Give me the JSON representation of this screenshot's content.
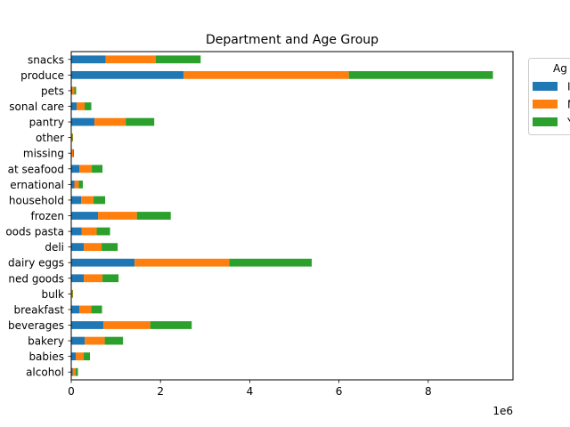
{
  "chart_data": {
    "type": "bar",
    "orientation": "horizontal",
    "stacked": true,
    "title": "Department and Age Group",
    "xlabel": "",
    "ylabel": "",
    "x_offset_label": "1e6",
    "xlim": [
      0,
      9.9
    ],
    "xticks": [
      0,
      2,
      4,
      6,
      8
    ],
    "grid": false,
    "legend_position": "right-outside (clipped)",
    "legend_title": "Ag",
    "categories": [
      "alcohol",
      "babies",
      "bakery",
      "beverages",
      "breakfast",
      "bulk",
      "canned goods",
      "dairy eggs",
      "deli",
      "dry goods pasta",
      "frozen",
      "household",
      "international",
      "meat seafood",
      "missing",
      "other",
      "pantry",
      "personal care",
      "pets",
      "produce",
      "snacks"
    ],
    "category_labels_visible": [
      "alcohol",
      "babies",
      "bakery",
      "beverages",
      "breakfast",
      "bulk",
      "ned goods",
      "dairy eggs",
      "deli",
      "oods pasta",
      "frozen",
      "household",
      "ernational",
      "at seafood",
      "missing",
      "other",
      "pantry",
      "sonal care",
      "pets",
      "produce",
      "snacks"
    ],
    "series": [
      {
        "name": "I",
        "color": "#1f77b4",
        "values": [
          0.03,
          0.1,
          0.3,
          0.72,
          0.18,
          0.01,
          0.28,
          1.42,
          0.28,
          0.23,
          0.6,
          0.22,
          0.07,
          0.18,
          0.01,
          0.01,
          0.52,
          0.12,
          0.02,
          2.52,
          0.77
        ]
      },
      {
        "name": "M",
        "color": "#ff7f0e",
        "values": [
          0.07,
          0.18,
          0.45,
          1.05,
          0.27,
          0.02,
          0.42,
          2.12,
          0.4,
          0.34,
          0.87,
          0.28,
          0.1,
          0.28,
          0.03,
          0.02,
          0.7,
          0.18,
          0.05,
          3.7,
          1.12
        ]
      },
      {
        "name": "Y",
        "color": "#2ca02c",
        "values": [
          0.05,
          0.14,
          0.41,
          0.93,
          0.24,
          0.01,
          0.36,
          1.85,
          0.36,
          0.3,
          0.76,
          0.26,
          0.09,
          0.24,
          0.02,
          0.01,
          0.64,
          0.15,
          0.04,
          3.23,
          1.01
        ]
      }
    ]
  }
}
